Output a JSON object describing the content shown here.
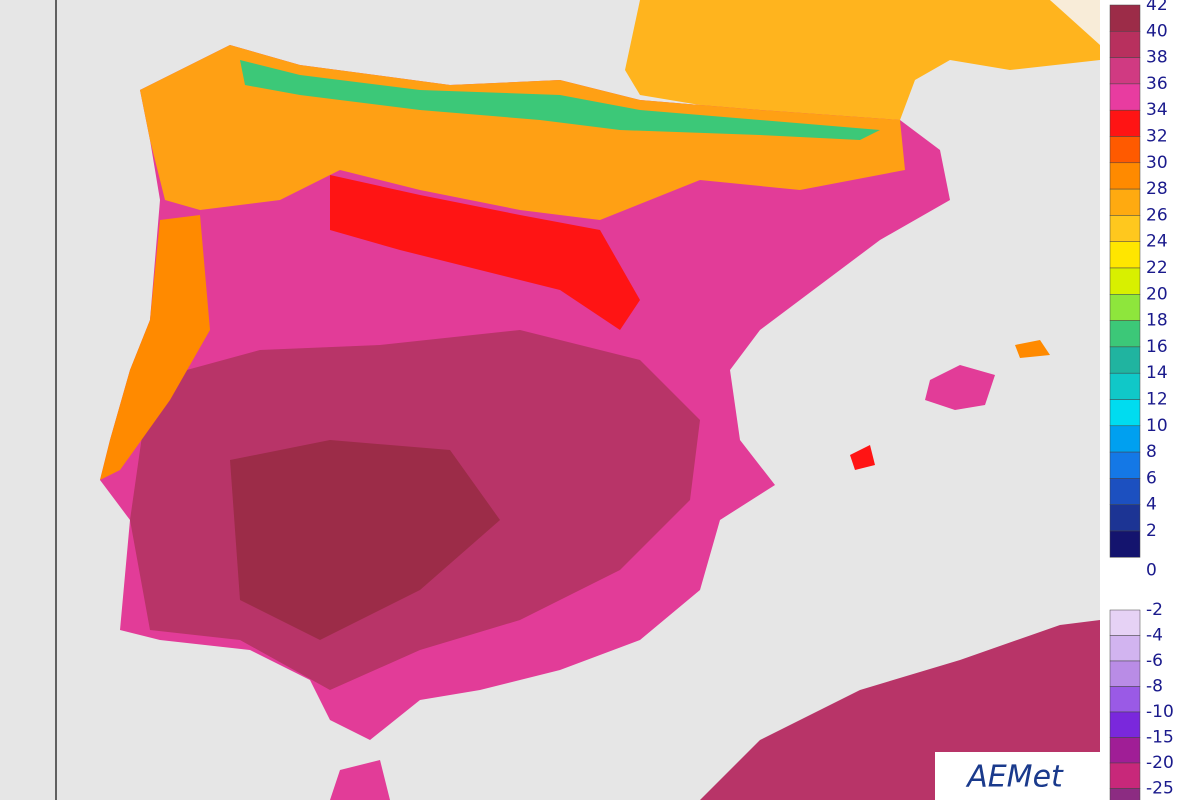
{
  "legend_positive": [
    {
      "label": "42",
      "color": "#9c2c48"
    },
    {
      "label": "40",
      "color": "#b8305e"
    },
    {
      "label": "38",
      "color": "#d03a82"
    },
    {
      "label": "36",
      "color": "#e83ca0"
    },
    {
      "label": "34",
      "color": "#ff1414"
    },
    {
      "label": "32",
      "color": "#ff5a00"
    },
    {
      "label": "30",
      "color": "#ff8a00"
    },
    {
      "label": "28",
      "color": "#ffaa10"
    },
    {
      "label": "26",
      "color": "#ffc81e"
    },
    {
      "label": "24",
      "color": "#ffe600"
    },
    {
      "label": "22",
      "color": "#d8f000"
    },
    {
      "label": "20",
      "color": "#8ee63c"
    },
    {
      "label": "18",
      "color": "#3cc878"
    },
    {
      "label": "16",
      "color": "#20b4a0"
    },
    {
      "label": "14",
      "color": "#10c8c8"
    },
    {
      "label": "12",
      "color": "#00dcf0"
    },
    {
      "label": "10",
      "color": "#00a0f0"
    },
    {
      "label": "8",
      "color": "#1478e6"
    },
    {
      "label": "6",
      "color": "#1c50c0"
    },
    {
      "label": "4",
      "color": "#1c3494"
    },
    {
      "label": "2",
      "color": "#14146e"
    },
    {
      "label": "0",
      "color": null
    }
  ],
  "legend_negative": [
    {
      "label": "-2",
      "color": "#e6d2f5"
    },
    {
      "label": "-4",
      "color": "#d2b4f0"
    },
    {
      "label": "-6",
      "color": "#b98ce6"
    },
    {
      "label": "-8",
      "color": "#9a5ae6"
    },
    {
      "label": "-10",
      "color": "#7a28dc"
    },
    {
      "label": "-15",
      "color": "#a01e96"
    },
    {
      "label": "-20",
      "color": "#c8287a"
    },
    {
      "label": "-25",
      "color": "#8c2c82"
    }
  ],
  "logo": "AEMet"
}
